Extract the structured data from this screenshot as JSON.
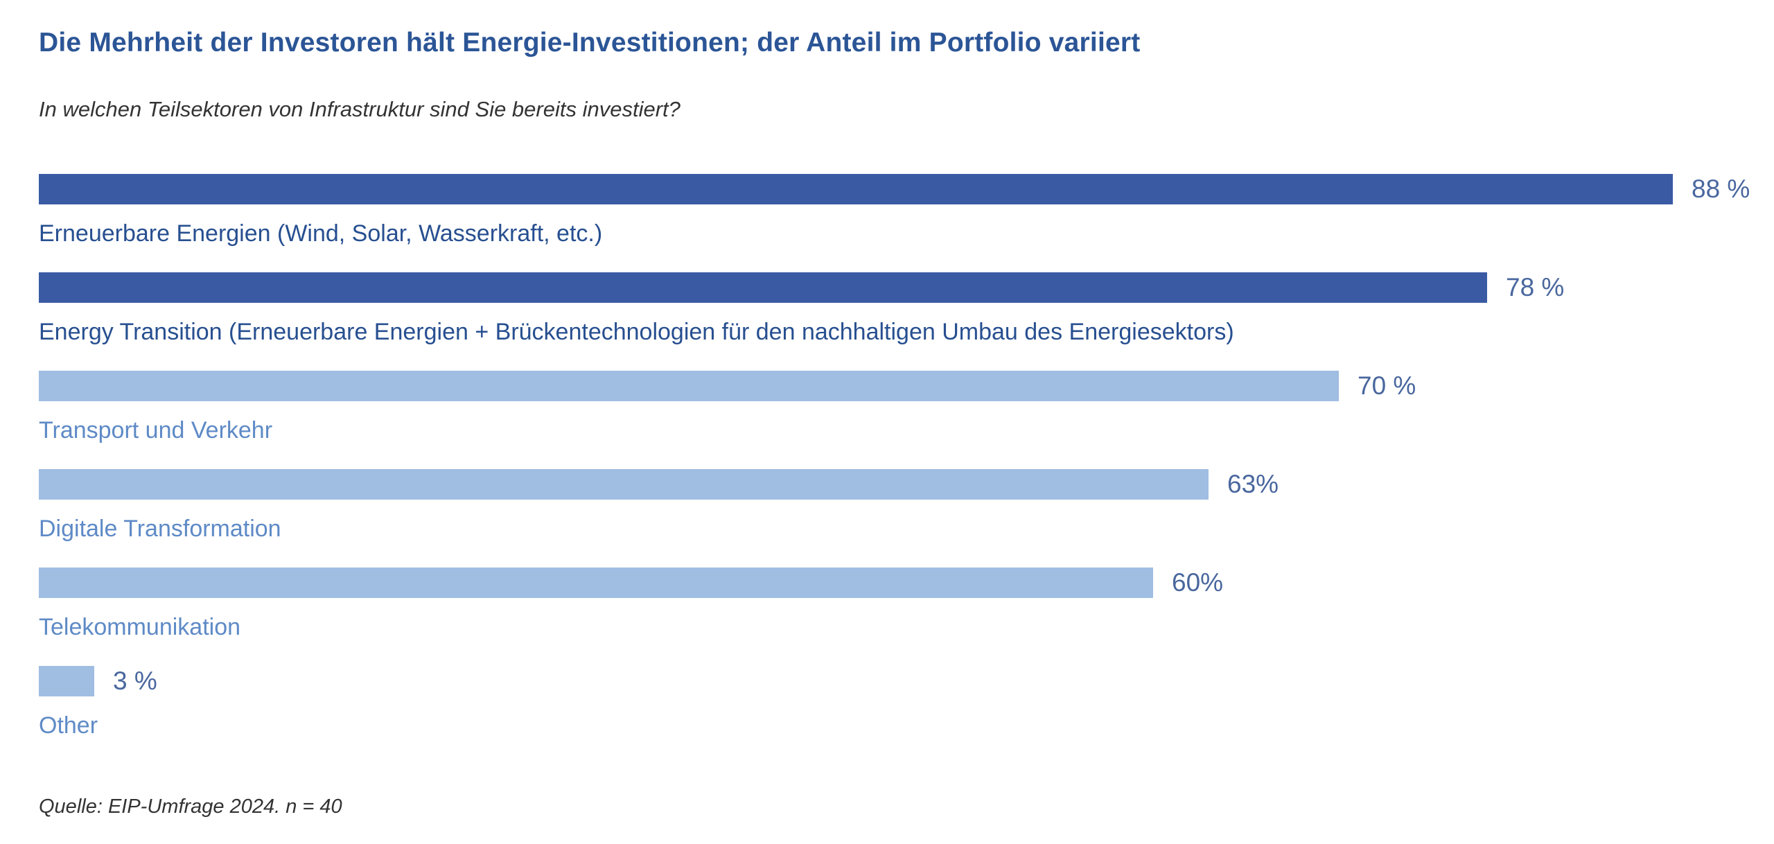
{
  "page": {
    "title": "Die Mehrheit der Investoren hält Energie-Investitionen; der Anteil im Portfolio variiert",
    "subtitle": "In welchen Teilsektoren von Infrastruktur sind Sie bereits investiert?",
    "source": "Quelle: EIP-Umfrage 2024. n = 40"
  },
  "colors": {
    "title": "#2B5596",
    "bar_dark": "#3A5BA4",
    "bar_light": "#A0BDE2",
    "category_label_dark": "#274F90",
    "category_label_light": "#5E8AC6",
    "percent_label": "#49679E"
  },
  "chart_data": {
    "type": "bar",
    "orientation": "horizontal",
    "title": "Die Mehrheit der Investoren hält Energie-Investitionen; der Anteil im Portfolio variiert",
    "subtitle": "In welchen Teilsektoren von Infrastruktur sind Sie bereits investiert?",
    "source": "Quelle: EIP-Umfrage 2024. n = 40",
    "xlabel": "",
    "ylabel": "",
    "xlim": [
      0,
      100
    ],
    "unit": "%",
    "grid": false,
    "legend": null,
    "categories": [
      "Erneuerbare Energien (Wind, Solar, Wasserkraft, etc.)",
      "Energy Transition (Erneuerbare Energien + Brückentechnologien für den nachhaltigen Umbau des Energiesektors)",
      "Transport und Verkehr",
      "Digitale Transformation",
      "Telekommunikation",
      "Other"
    ],
    "values": [
      88,
      78,
      70,
      63,
      60,
      3
    ],
    "rows": [
      {
        "label": "Erneuerbare Energien (Wind, Solar, Wasserkraft, etc.)",
        "value": 88,
        "value_label": "88 %",
        "emphasis": "dark"
      },
      {
        "label": "Energy Transition (Erneuerbare Energien + Brückentechnologien für den nachhaltigen Umbau des Energiesektors)",
        "value": 78,
        "value_label": "78 %",
        "emphasis": "dark"
      },
      {
        "label": "Transport und Verkehr",
        "value": 70,
        "value_label": "70 %",
        "emphasis": "light"
      },
      {
        "label": "Digitale Transformation",
        "value": 63,
        "value_label": "63%",
        "emphasis": "light"
      },
      {
        "label": "Telekommunikation",
        "value": 60,
        "value_label": "60%",
        "emphasis": "light"
      },
      {
        "label": "Other",
        "value": 3,
        "value_label": "3 %",
        "emphasis": "light"
      }
    ]
  }
}
